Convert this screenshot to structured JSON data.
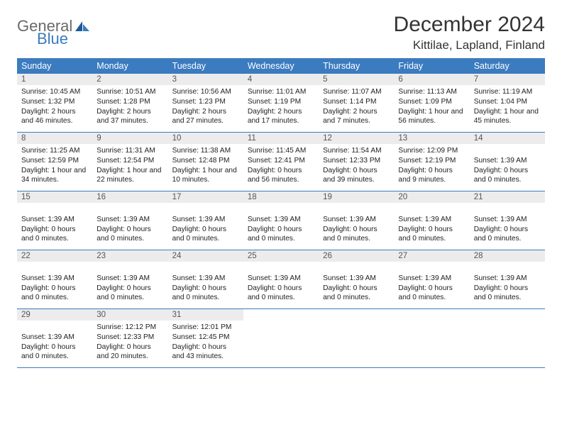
{
  "brand": {
    "name1": "General",
    "name2": "Blue"
  },
  "title": "December 2024",
  "location": "Kittilae, Lapland, Finland",
  "colors": {
    "header_bg": "#3b7bbf",
    "header_text": "#ffffff",
    "daynum_bg": "#ececec",
    "border": "#3b7bbf",
    "body_text": "#222222",
    "logo_gray": "#6a6a6a",
    "logo_blue": "#3b7bbf"
  },
  "dayNames": [
    "Sunday",
    "Monday",
    "Tuesday",
    "Wednesday",
    "Thursday",
    "Friday",
    "Saturday"
  ],
  "weeks": [
    [
      {
        "num": "1",
        "lines": [
          "Sunrise: 10:45 AM",
          "Sunset: 1:32 PM",
          "Daylight: 2 hours and 46 minutes."
        ]
      },
      {
        "num": "2",
        "lines": [
          "Sunrise: 10:51 AM",
          "Sunset: 1:28 PM",
          "Daylight: 2 hours and 37 minutes."
        ]
      },
      {
        "num": "3",
        "lines": [
          "Sunrise: 10:56 AM",
          "Sunset: 1:23 PM",
          "Daylight: 2 hours and 27 minutes."
        ]
      },
      {
        "num": "4",
        "lines": [
          "Sunrise: 11:01 AM",
          "Sunset: 1:19 PM",
          "Daylight: 2 hours and 17 minutes."
        ]
      },
      {
        "num": "5",
        "lines": [
          "Sunrise: 11:07 AM",
          "Sunset: 1:14 PM",
          "Daylight: 2 hours and 7 minutes."
        ]
      },
      {
        "num": "6",
        "lines": [
          "Sunrise: 11:13 AM",
          "Sunset: 1:09 PM",
          "Daylight: 1 hour and 56 minutes."
        ]
      },
      {
        "num": "7",
        "lines": [
          "Sunrise: 11:19 AM",
          "Sunset: 1:04 PM",
          "Daylight: 1 hour and 45 minutes."
        ]
      }
    ],
    [
      {
        "num": "8",
        "lines": [
          "Sunrise: 11:25 AM",
          "Sunset: 12:59 PM",
          "Daylight: 1 hour and 34 minutes."
        ]
      },
      {
        "num": "9",
        "lines": [
          "Sunrise: 11:31 AM",
          "Sunset: 12:54 PM",
          "Daylight: 1 hour and 22 minutes."
        ]
      },
      {
        "num": "10",
        "lines": [
          "Sunrise: 11:38 AM",
          "Sunset: 12:48 PM",
          "Daylight: 1 hour and 10 minutes."
        ]
      },
      {
        "num": "11",
        "lines": [
          "Sunrise: 11:45 AM",
          "Sunset: 12:41 PM",
          "Daylight: 0 hours and 56 minutes."
        ]
      },
      {
        "num": "12",
        "lines": [
          "Sunrise: 11:54 AM",
          "Sunset: 12:33 PM",
          "Daylight: 0 hours and 39 minutes."
        ]
      },
      {
        "num": "13",
        "lines": [
          "Sunrise: 12:09 PM",
          "Sunset: 12:19 PM",
          "Daylight: 0 hours and 9 minutes."
        ]
      },
      {
        "num": "14",
        "lines": [
          "",
          "Sunset: 1:39 AM",
          "Daylight: 0 hours and 0 minutes."
        ]
      }
    ],
    [
      {
        "num": "15",
        "lines": [
          "",
          "Sunset: 1:39 AM",
          "Daylight: 0 hours and 0 minutes."
        ]
      },
      {
        "num": "16",
        "lines": [
          "",
          "Sunset: 1:39 AM",
          "Daylight: 0 hours and 0 minutes."
        ]
      },
      {
        "num": "17",
        "lines": [
          "",
          "Sunset: 1:39 AM",
          "Daylight: 0 hours and 0 minutes."
        ]
      },
      {
        "num": "18",
        "lines": [
          "",
          "Sunset: 1:39 AM",
          "Daylight: 0 hours and 0 minutes."
        ]
      },
      {
        "num": "19",
        "lines": [
          "",
          "Sunset: 1:39 AM",
          "Daylight: 0 hours and 0 minutes."
        ]
      },
      {
        "num": "20",
        "lines": [
          "",
          "Sunset: 1:39 AM",
          "Daylight: 0 hours and 0 minutes."
        ]
      },
      {
        "num": "21",
        "lines": [
          "",
          "Sunset: 1:39 AM",
          "Daylight: 0 hours and 0 minutes."
        ]
      }
    ],
    [
      {
        "num": "22",
        "lines": [
          "",
          "Sunset: 1:39 AM",
          "Daylight: 0 hours and 0 minutes."
        ]
      },
      {
        "num": "23",
        "lines": [
          "",
          "Sunset: 1:39 AM",
          "Daylight: 0 hours and 0 minutes."
        ]
      },
      {
        "num": "24",
        "lines": [
          "",
          "Sunset: 1:39 AM",
          "Daylight: 0 hours and 0 minutes."
        ]
      },
      {
        "num": "25",
        "lines": [
          "",
          "Sunset: 1:39 AM",
          "Daylight: 0 hours and 0 minutes."
        ]
      },
      {
        "num": "26",
        "lines": [
          "",
          "Sunset: 1:39 AM",
          "Daylight: 0 hours and 0 minutes."
        ]
      },
      {
        "num": "27",
        "lines": [
          "",
          "Sunset: 1:39 AM",
          "Daylight: 0 hours and 0 minutes."
        ]
      },
      {
        "num": "28",
        "lines": [
          "",
          "Sunset: 1:39 AM",
          "Daylight: 0 hours and 0 minutes."
        ]
      }
    ],
    [
      {
        "num": "29",
        "lines": [
          "",
          "Sunset: 1:39 AM",
          "Daylight: 0 hours and 0 minutes."
        ]
      },
      {
        "num": "30",
        "lines": [
          "Sunrise: 12:12 PM",
          "Sunset: 12:33 PM",
          "Daylight: 0 hours and 20 minutes."
        ]
      },
      {
        "num": "31",
        "lines": [
          "Sunrise: 12:01 PM",
          "Sunset: 12:45 PM",
          "Daylight: 0 hours and 43 minutes."
        ]
      },
      {
        "num": "",
        "lines": []
      },
      {
        "num": "",
        "lines": []
      },
      {
        "num": "",
        "lines": []
      },
      {
        "num": "",
        "lines": []
      }
    ]
  ]
}
